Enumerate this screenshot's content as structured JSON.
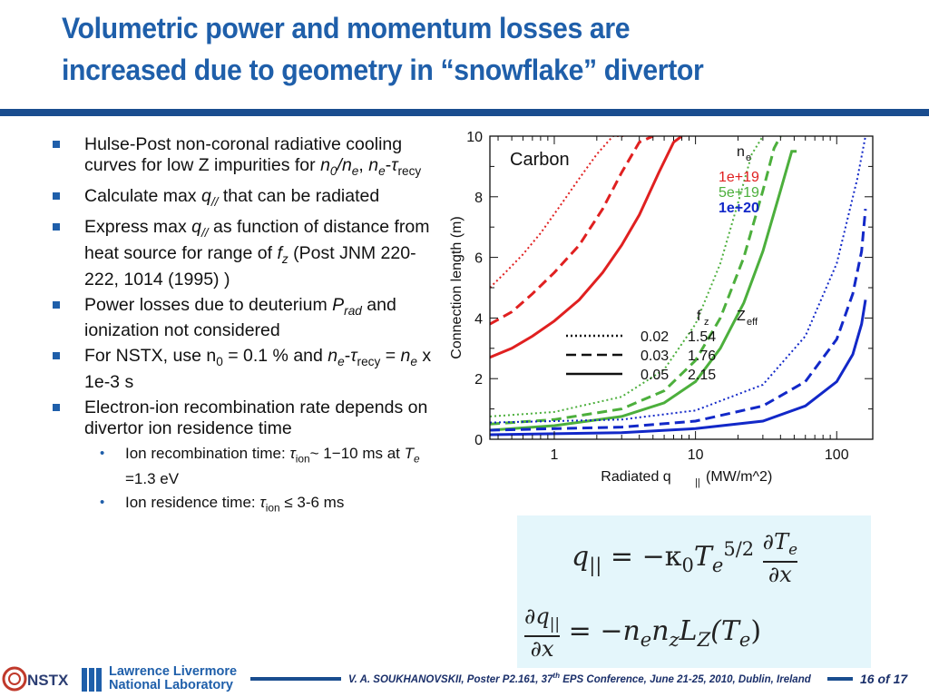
{
  "title": {
    "line1": "Volumetric power and momentum losses are",
    "line2": "increased due to geometry in “snowflake” divertor"
  },
  "bullets": {
    "b1": {
      "t1": "Hulse-Post non-coronal radiative cooling curves for low Z impurities for ",
      "n0": "n",
      "n0sub": "0",
      "slash": "/",
      "ne": "n",
      "nesub": "e",
      "comma": ", ",
      "ne2": "n",
      "ne2sub": "e",
      "dash": "-",
      "tau": "τ",
      "recy": "recy"
    },
    "b2": {
      "t1": "Calculate max ",
      "q": "q",
      "qsub": "//",
      "t2": " that can be radiated"
    },
    "b3": {
      "t1": "Express max ",
      "q": "q",
      "qsub": "//",
      "t2": " as function of distance from heat source for range of  ",
      "f": "f",
      "fsub": "z",
      "t3": "  (Post JNM 220-222, 1014 (1995) )"
    },
    "b4": {
      "t1": "Power losses due to deuterium ",
      "p": "P",
      "psub": "rad",
      "t2": " and ionization not considered"
    },
    "b5": {
      "t1": "For NSTX, use n",
      "n0sub": "0",
      "t2": " = 0.1 % and ",
      "ne": "n",
      "nesub": "e",
      "dash": "-",
      "tau": "τ",
      "recy": "recy",
      "t3": " = ",
      "ne2": "n",
      "ne2sub": "e",
      "t4": " x  1e-3 s"
    },
    "b6": {
      "text": "Electron-ion recombination rate depends on divertor ion residence time"
    },
    "s1": {
      "t1": "Ion recombination time: ",
      "tau": "τ",
      "ion": "ion",
      "t2": "~ 1−10 ms at ",
      "te": "T",
      "tesub": "e",
      "t3": " =1.3 eV"
    },
    "s2": {
      "t1": "Ion residence time: ",
      "tau": "τ",
      "ion": "ion",
      "t2": " ≤ 3-6 ms"
    }
  },
  "chart_data": {
    "type": "line",
    "title": "",
    "annotation": "Carbon",
    "xlabel": "Radiated q",
    "xlabel_sub": "||",
    "xlabel_unit": "(MW/m^2)",
    "ylabel": "Connection length (m)",
    "xscale": "log",
    "xlim": [
      0.35,
      180
    ],
    "ylim": [
      0,
      10
    ],
    "xticks": [
      1,
      10,
      100
    ],
    "xtick_labels": [
      "1",
      "10",
      "100"
    ],
    "yticks": [
      0,
      2,
      4,
      6,
      8,
      10
    ],
    "ytick_labels": [
      "0",
      "2",
      "4",
      "6",
      "8",
      "10"
    ],
    "legend_ne_title": "n",
    "legend_ne_sub": "e",
    "legend_ne": [
      {
        "label": "1e+19",
        "color": "#e02020"
      },
      {
        "label": "5e+19",
        "color": "#4caf3c"
      },
      {
        "label": "1e+20",
        "color": "#1228c8"
      }
    ],
    "legend_fz": {
      "h1": "f",
      "h1sub": "z",
      "h2": "Z",
      "h2sub": "eff",
      "rows": [
        {
          "style": "dotted",
          "fz": "0.02",
          "zeff": "1.54"
        },
        {
          "style": "dashed",
          "fz": "0.03",
          "zeff": "1.76"
        },
        {
          "style": "solid",
          "fz": "0.05",
          "zeff": "2.15"
        }
      ]
    },
    "series": [
      {
        "ne": "1e+19",
        "fz": "0.02",
        "style": "dotted",
        "color": "#e02020",
        "x": [
          0.35,
          0.45,
          0.6,
          0.8,
          1.1,
          1.5,
          2.0,
          2.6,
          3.2
        ],
        "y": [
          5.0,
          5.5,
          6.1,
          6.8,
          7.7,
          8.6,
          9.4,
          10.0,
          10.0
        ]
      },
      {
        "ne": "1e+19",
        "fz": "0.03",
        "style": "dashed",
        "color": "#e02020",
        "x": [
          0.35,
          0.5,
          0.7,
          1.0,
          1.5,
          2.2,
          3.0,
          4.0,
          5.0
        ],
        "y": [
          3.8,
          4.2,
          4.8,
          5.5,
          6.4,
          7.6,
          8.8,
          9.8,
          10.0
        ]
      },
      {
        "ne": "1e+19",
        "fz": "0.05",
        "style": "solid",
        "color": "#e02020",
        "x": [
          0.35,
          0.5,
          0.7,
          1.0,
          1.5,
          2.2,
          3.0,
          4.0,
          5.5,
          7.0,
          8.0
        ],
        "y": [
          2.7,
          3.0,
          3.4,
          3.9,
          4.6,
          5.5,
          6.4,
          7.4,
          8.8,
          9.8,
          10.0
        ]
      },
      {
        "ne": "5e+19",
        "fz": "0.02",
        "style": "dotted",
        "color": "#4caf3c",
        "x": [
          0.35,
          1.0,
          3.0,
          6.0,
          10,
          15,
          20,
          25,
          30
        ],
        "y": [
          0.75,
          0.9,
          1.4,
          2.3,
          3.8,
          5.8,
          7.8,
          9.4,
          10.0
        ]
      },
      {
        "ne": "5e+19",
        "fz": "0.03",
        "style": "dashed",
        "color": "#4caf3c",
        "x": [
          0.35,
          1.0,
          3.0,
          6.0,
          10,
          15,
          22,
          30,
          36,
          40
        ],
        "y": [
          0.5,
          0.65,
          1.0,
          1.6,
          2.6,
          4.0,
          6.0,
          8.2,
          9.6,
          10.0
        ]
      },
      {
        "ne": "5e+19",
        "fz": "0.05",
        "style": "solid",
        "color": "#4caf3c",
        "x": [
          0.35,
          1.0,
          3.0,
          6.0,
          10,
          15,
          22,
          30,
          40,
          48,
          52
        ],
        "y": [
          0.3,
          0.45,
          0.75,
          1.2,
          1.9,
          3.0,
          4.5,
          6.2,
          8.2,
          9.5,
          9.5
        ]
      },
      {
        "ne": "1e+20",
        "fz": "0.02",
        "style": "dotted",
        "color": "#1228c8",
        "x": [
          0.35,
          3.0,
          10,
          30,
          60,
          100,
          140,
          160
        ],
        "y": [
          0.55,
          0.65,
          0.95,
          1.8,
          3.4,
          5.8,
          8.6,
          10.0
        ]
      },
      {
        "ne": "1e+20",
        "fz": "0.03",
        "style": "dashed",
        "color": "#1228c8",
        "x": [
          0.35,
          3.0,
          10,
          30,
          60,
          100,
          130,
          150,
          160
        ],
        "y": [
          0.3,
          0.4,
          0.6,
          1.1,
          1.9,
          3.3,
          4.8,
          6.2,
          7.6
        ]
      },
      {
        "ne": "1e+20",
        "fz": "0.05",
        "style": "solid",
        "color": "#1228c8",
        "x": [
          0.35,
          3.0,
          10,
          30,
          60,
          100,
          130,
          150,
          160
        ],
        "y": [
          0.15,
          0.22,
          0.35,
          0.6,
          1.1,
          1.9,
          2.8,
          3.8,
          4.6
        ]
      }
    ]
  },
  "equations": {
    "eq1": {
      "q": "q",
      "qsub": "||",
      "eq": "=",
      "rhs1": "−κ",
      "k0": "0",
      "T": "T",
      "Tsub": "e",
      "Tsup": "5/2",
      "dnum": "∂T",
      "dnumsub": "e",
      "dden": "∂x"
    },
    "eq2": {
      "num": "∂q",
      "numsub": "||",
      "den": "∂x",
      "eq": "=",
      "rhs": "−n",
      "rhs_sub1": "e",
      "rhs2": "n",
      "rhs_sub2": "z",
      "rhs3": "L",
      "rhs_sub3": "Z",
      "rhs4": "(T",
      "rhs_sub4": "e",
      "rhs5": ")"
    }
  },
  "footer": {
    "citation": "V. A. SOUKHANOVSKII, Poster P2.161, 37",
    "citation_sup": "th",
    "citation2": " EPS Conference, June 21-25, 2010, Dublin, Ireland",
    "page": "16 of 17",
    "logo_nstx": "NSTX",
    "llnl_line1": "Lawrence Livermore",
    "llnl_line2": "National Laboratory"
  },
  "colors": {
    "title": "#1f5faa",
    "rule": "#1a4d8f",
    "eq_bg": "#e4f6fb"
  }
}
